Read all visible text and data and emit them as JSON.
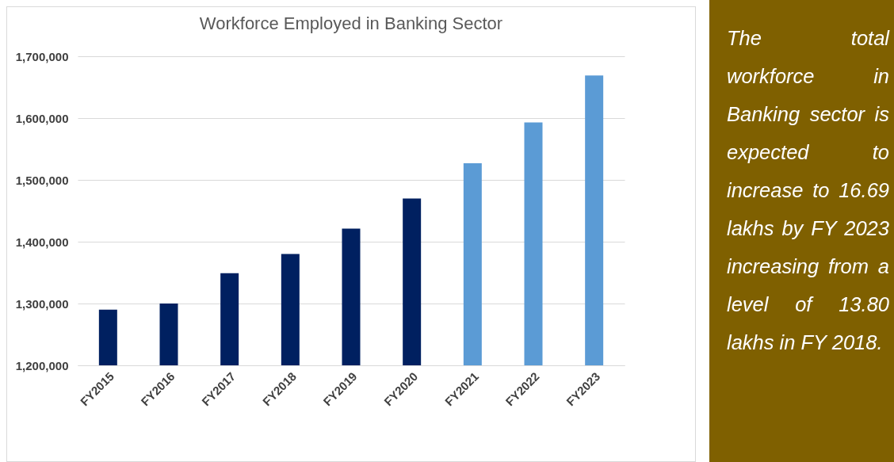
{
  "chart_data": {
    "type": "bar",
    "title": "Workforce Employed in Banking Sector",
    "categories": [
      "FY2015",
      "FY2016",
      "FY2017",
      "FY2018",
      "FY2019",
      "FY2020",
      "FY2021",
      "FY2022",
      "FY2023"
    ],
    "values": [
      1290000,
      1300000,
      1349000,
      1380000,
      1421000,
      1470000,
      1527000,
      1593000,
      1669000
    ],
    "colors": [
      "#002060",
      "#002060",
      "#002060",
      "#002060",
      "#002060",
      "#002060",
      "#5b9bd5",
      "#5b9bd5",
      "#5b9bd5"
    ],
    "ylim": [
      1200000,
      1700000
    ],
    "yticks": [
      {
        "value": 1200000,
        "label": "1,200,000"
      },
      {
        "value": 1300000,
        "label": "1,300,000"
      },
      {
        "value": 1400000,
        "label": "1,400,000"
      },
      {
        "value": 1500000,
        "label": "1,500,000"
      },
      {
        "value": 1600000,
        "label": "1,600,000"
      },
      {
        "value": 1700000,
        "label": "1,700,000"
      }
    ],
    "grid": "y",
    "annotations": [
      "The total workforce in Banking sector is expected to increase to 16.69 lakhs by FY 2023 increasing from a level of 13.80 lakhs in FY 2018."
    ]
  }
}
